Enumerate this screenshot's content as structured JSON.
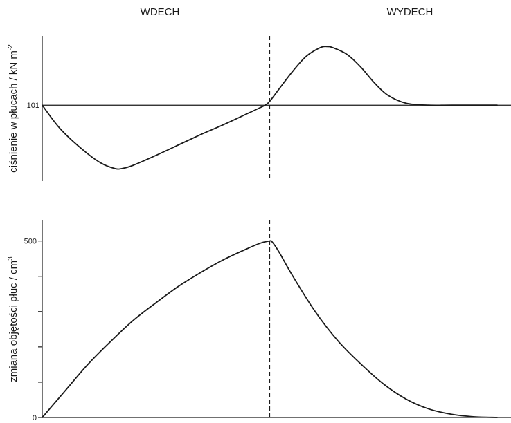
{
  "phases": {
    "inhale": "WDECH",
    "exhale": "WYDECH"
  },
  "chart_data": [
    {
      "type": "line",
      "name": "pressure",
      "ylabel_main": "ciśnienie w płucach / kN m",
      "ylabel_sup": "-2",
      "y_tick_labels": [
        {
          "value": 0,
          "label": "101"
        }
      ],
      "reference_line": 0,
      "divider_x": 0.5,
      "x": [
        0,
        0.04,
        0.09,
        0.13,
        0.16,
        0.175,
        0.2,
        0.25,
        0.3,
        0.35,
        0.4,
        0.45,
        0.475,
        0.49,
        0.5,
        0.52,
        0.55,
        0.58,
        0.61,
        0.625,
        0.64,
        0.67,
        0.7,
        0.73,
        0.76,
        0.8,
        0.85,
        0.9,
        1.0
      ],
      "values": [
        0,
        -0.36,
        -0.68,
        -0.88,
        -0.96,
        -0.96,
        -0.91,
        -0.76,
        -0.6,
        -0.44,
        -0.29,
        -0.13,
        -0.05,
        0.0,
        0.06,
        0.24,
        0.51,
        0.74,
        0.87,
        0.89,
        0.87,
        0.77,
        0.58,
        0.34,
        0.15,
        0.03,
        0.0,
        0.0,
        0.0
      ],
      "ylim": [
        -1.15,
        1.05
      ]
    },
    {
      "type": "line",
      "name": "volume",
      "ylabel_main": "zmiana objętości płuc / cm",
      "ylabel_sup": "3",
      "y_ticks": [
        0,
        100,
        200,
        300,
        400,
        500
      ],
      "y_tick_labels": [
        {
          "value": 500,
          "label": "500"
        },
        {
          "value": 0,
          "label": "0"
        }
      ],
      "divider_x": 0.5,
      "x": [
        0,
        0.05,
        0.1,
        0.15,
        0.2,
        0.25,
        0.3,
        0.35,
        0.4,
        0.45,
        0.48,
        0.5,
        0.505,
        0.52,
        0.55,
        0.6,
        0.65,
        0.7,
        0.75,
        0.8,
        0.85,
        0.9,
        0.95,
        1.0
      ],
      "values": [
        0,
        75,
        150,
        215,
        275,
        325,
        372,
        412,
        448,
        478,
        494,
        500,
        498,
        470,
        402,
        300,
        217,
        152,
        95,
        52,
        24,
        9,
        2,
        0
      ],
      "ylim": [
        0,
        560
      ]
    }
  ]
}
